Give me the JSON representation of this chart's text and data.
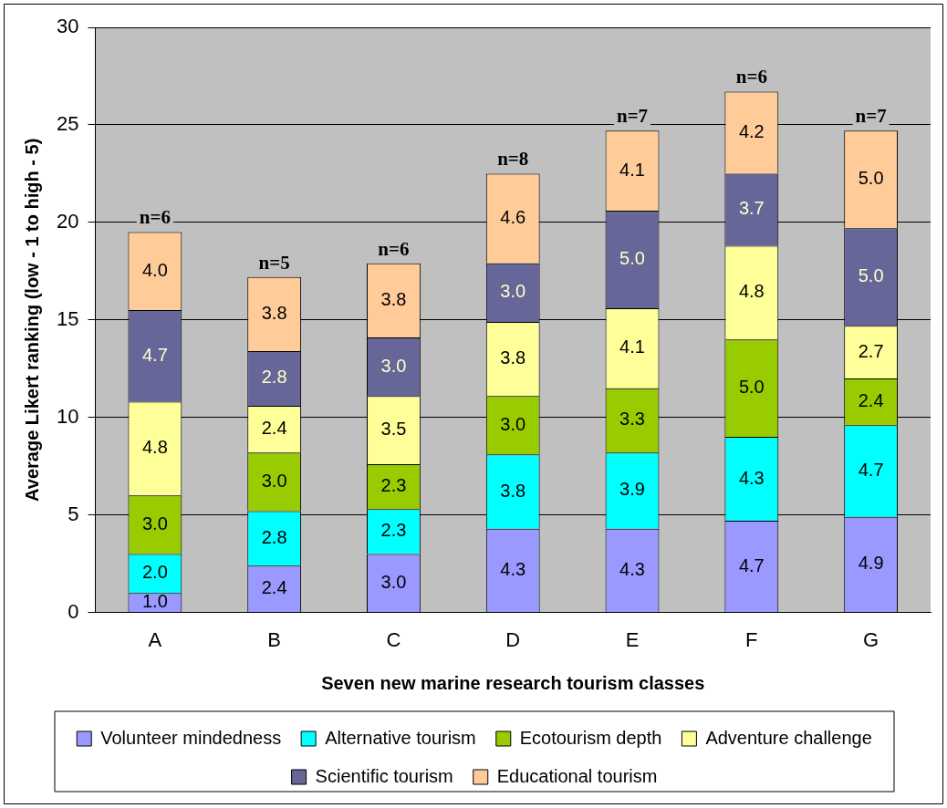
{
  "chart_data": {
    "type": "bar",
    "stacked": true,
    "xlabel": "Seven new marine research tourism classes",
    "ylabel": "Average Likert ranking (low - 1 to high - 5)",
    "categories": [
      "A",
      "B",
      "C",
      "D",
      "E",
      "F",
      "G"
    ],
    "series": [
      {
        "name": "Volunteer mindedness",
        "color": "#9999ff",
        "values": [
          1.0,
          2.4,
          3.0,
          4.3,
          4.3,
          4.7,
          4.9
        ],
        "value_labels": [
          "1.0",
          "2.4",
          "3.0",
          "4.3",
          "4.3",
          "4.7",
          "4.9"
        ]
      },
      {
        "name": "Alternative tourism",
        "color": "#00ffff",
        "values": [
          2.0,
          2.8,
          2.3,
          3.8,
          3.9,
          4.3,
          4.7
        ],
        "value_labels": [
          "2.0",
          "2.8",
          "2.3",
          "3.8",
          "3.9",
          "4.3",
          "4.7"
        ]
      },
      {
        "name": "Ecotourism depth",
        "color": "#99cc00",
        "values": [
          3.0,
          3.0,
          2.3,
          3.0,
          3.3,
          5.0,
          2.4
        ],
        "value_labels": [
          "3.0",
          "3.0",
          "2.3",
          "3.0",
          "3.3",
          "5.0",
          "2.4"
        ]
      },
      {
        "name": "Adventure challenge",
        "color": "#ffff99",
        "values": [
          4.8,
          2.4,
          3.5,
          3.8,
          4.1,
          4.8,
          2.7
        ],
        "value_labels": [
          "4.8",
          "2.4",
          "3.5",
          "3.8",
          "4.1",
          "4.8",
          "2.7"
        ]
      },
      {
        "name": "Scientific tourism",
        "color": "#666699",
        "values": [
          4.7,
          2.8,
          3.0,
          3.0,
          5.0,
          3.7,
          5.0
        ],
        "value_labels": [
          "4.7",
          "2.8",
          "3.0",
          "3.0",
          "5.0",
          "3.7",
          "5.0"
        ]
      },
      {
        "name": "Educational tourism",
        "color": "#ffcc99",
        "values": [
          4.0,
          3.8,
          3.8,
          4.6,
          4.1,
          4.2,
          5.0
        ],
        "value_labels": [
          "4.0",
          "3.8",
          "3.8",
          "4.6",
          "4.1",
          "4.2",
          "5.0"
        ]
      }
    ],
    "annotations": [
      {
        "text": "n=6",
        "x": "A",
        "y": 19.5
      },
      {
        "text": "n=5",
        "x": "B",
        "y": 17.2
      },
      {
        "text": "n=6",
        "x": "C",
        "y": 17.9
      },
      {
        "text": "n=8",
        "x": "D",
        "y": 22.5
      },
      {
        "text": "n=7",
        "x": "E",
        "y": 24.7
      },
      {
        "text": "n=6",
        "x": "F",
        "y": 26.7
      },
      {
        "text": "n=7",
        "x": "G",
        "y": 24.7
      }
    ],
    "ylim": [
      0,
      30
    ],
    "yticks": [
      0,
      5,
      10,
      15,
      20,
      25,
      30
    ],
    "grid": "y",
    "legend": "bottom"
  }
}
